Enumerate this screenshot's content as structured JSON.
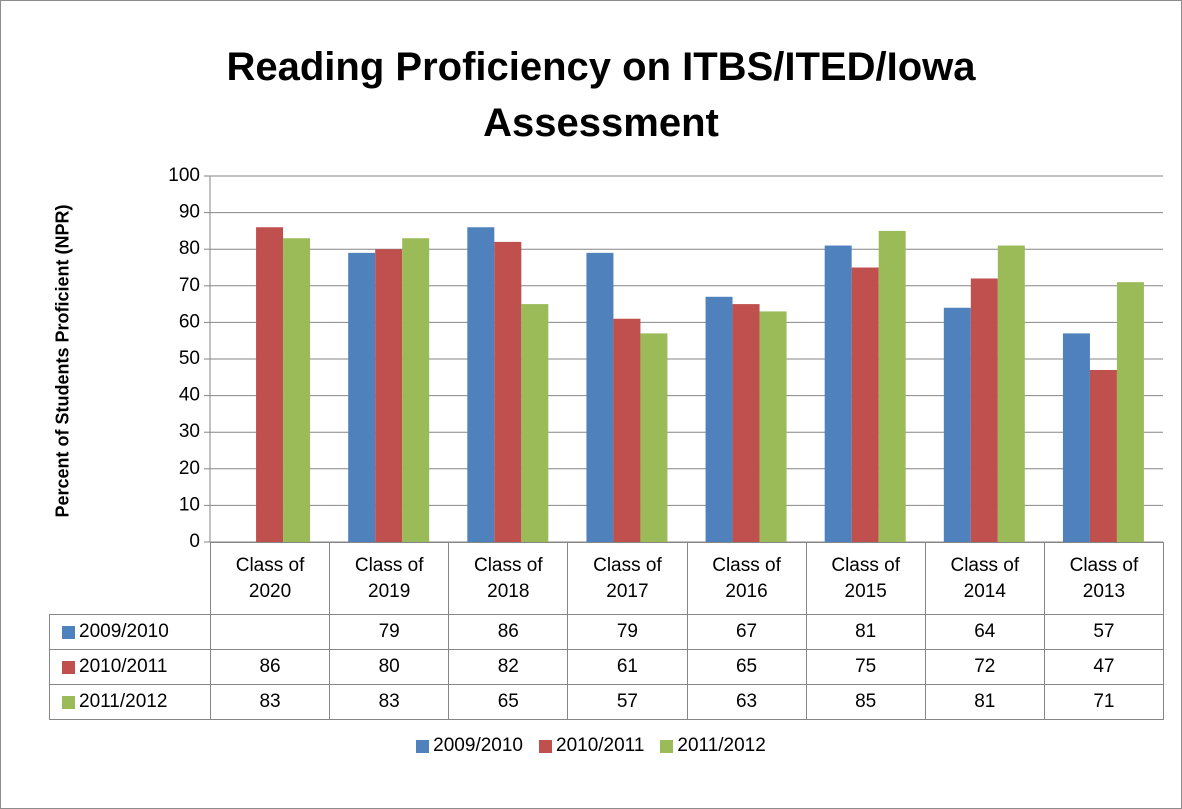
{
  "chart_data": {
    "type": "bar",
    "title": "Reading Proficiency on ITBS/ITED/Iowa Assessment",
    "y_label": "Percent of Students Proficient (NPR)",
    "categories": [
      "Class of 2020",
      "Class of 2019",
      "Class of 2018",
      "Class of 2017",
      "Class of 2016",
      "Class of 2015",
      "Class of 2014",
      "Class of 2013"
    ],
    "series": [
      {
        "name": "2009/2010",
        "color": "#4f81bd",
        "values": [
          null,
          79,
          86,
          79,
          67,
          81,
          64,
          57
        ]
      },
      {
        "name": "2010/2011",
        "color": "#c0504d",
        "values": [
          86,
          80,
          82,
          61,
          65,
          75,
          72,
          47
        ]
      },
      {
        "name": "2011/2012",
        "color": "#9bbb59",
        "values": [
          83,
          83,
          65,
          57,
          63,
          85,
          81,
          71
        ]
      }
    ],
    "ylim": [
      0,
      100
    ],
    "yticks": [
      0,
      10,
      20,
      30,
      40,
      50,
      60,
      70,
      80,
      90,
      100
    ],
    "grid": true,
    "legend": "bottom"
  }
}
